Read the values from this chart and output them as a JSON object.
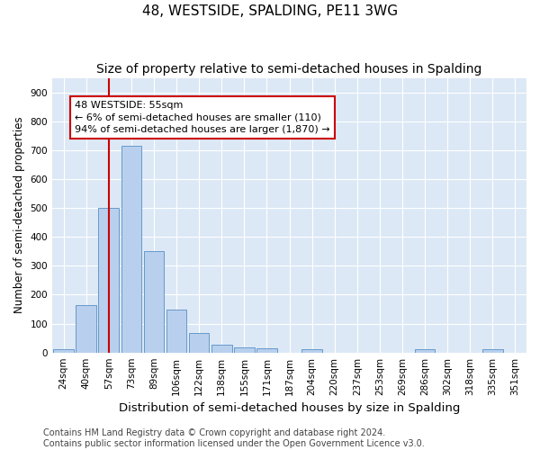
{
  "title": "48, WESTSIDE, SPALDING, PE11 3WG",
  "subtitle": "Size of property relative to semi-detached houses in Spalding",
  "xlabel": "Distribution of semi-detached houses by size in Spalding",
  "ylabel": "Number of semi-detached properties",
  "categories": [
    "24sqm",
    "40sqm",
    "57sqm",
    "73sqm",
    "89sqm",
    "106sqm",
    "122sqm",
    "138sqm",
    "155sqm",
    "171sqm",
    "187sqm",
    "204sqm",
    "220sqm",
    "237sqm",
    "253sqm",
    "269sqm",
    "286sqm",
    "302sqm",
    "318sqm",
    "335sqm",
    "351sqm"
  ],
  "values": [
    10,
    163,
    500,
    715,
    350,
    147,
    68,
    27,
    18,
    15,
    0,
    10,
    0,
    0,
    0,
    0,
    10,
    0,
    0,
    10,
    0
  ],
  "bar_color": "#b8d0ed",
  "bar_edge_color": "#6699cc",
  "vline_x_index": 2,
  "vline_color": "#cc0000",
  "annotation_line1": "48 WESTSIDE: 55sqm",
  "annotation_line2": "← 6% of semi-detached houses are smaller (110)",
  "annotation_line3": "94% of semi-detached houses are larger (1,870) →",
  "annotation_box_color": "#ffffff",
  "annotation_box_edge_color": "#cc0000",
  "ylim": [
    0,
    950
  ],
  "yticks": [
    0,
    100,
    200,
    300,
    400,
    500,
    600,
    700,
    800,
    900
  ],
  "plot_bg_color": "#dce8f5",
  "fig_bg_color": "#ffffff",
  "footer_text": "Contains HM Land Registry data © Crown copyright and database right 2024.\nContains public sector information licensed under the Open Government Licence v3.0.",
  "title_fontsize": 11,
  "subtitle_fontsize": 10,
  "xlabel_fontsize": 9.5,
  "ylabel_fontsize": 8.5,
  "tick_fontsize": 7.5,
  "annotation_fontsize": 8,
  "footer_fontsize": 7
}
